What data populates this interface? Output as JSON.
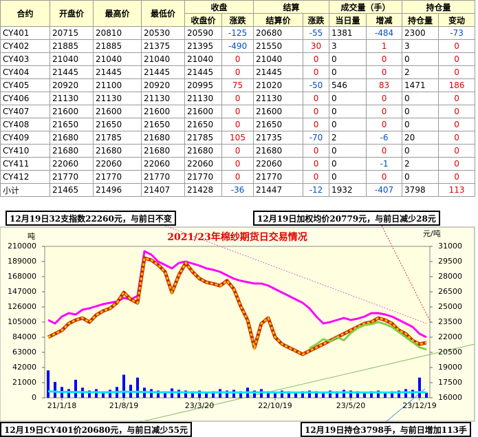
{
  "table": {
    "top": [
      "合约",
      "开盘价",
      "最高价",
      "最低价",
      "收盘",
      "结算",
      "成交量（手）",
      "持仓量"
    ],
    "sub": [
      "收盘价",
      "涨跌",
      "结算价",
      "涨跌",
      "当日量",
      "增减",
      "持仓量",
      "变动"
    ],
    "rows": [
      [
        "CY401",
        20715,
        20810,
        20530,
        20590,
        -125,
        20680,
        -55,
        1381,
        -484,
        2300,
        -73
      ],
      [
        "CY402",
        21885,
        21885,
        21375,
        21395,
        -490,
        21550,
        30,
        3,
        1,
        3,
        0
      ],
      [
        "CY403",
        21040,
        21040,
        21040,
        21040,
        0,
        21040,
        0,
        0,
        0,
        0,
        0
      ],
      [
        "CY404",
        21445,
        21445,
        21445,
        21445,
        0,
        21445,
        0,
        0,
        0,
        2,
        0
      ],
      [
        "CY405",
        20920,
        21100,
        20920,
        20995,
        75,
        21020,
        -50,
        546,
        83,
        1471,
        186
      ],
      [
        "CY406",
        21130,
        21130,
        21130,
        21130,
        0,
        21130,
        0,
        0,
        0,
        0,
        0
      ],
      [
        "CY407",
        21600,
        21600,
        21600,
        21600,
        0,
        21600,
        0,
        0,
        0,
        0,
        0
      ],
      [
        "CY408",
        21650,
        21650,
        21650,
        21650,
        0,
        21650,
        0,
        0,
        0,
        0,
        0
      ],
      [
        "CY409",
        21680,
        21785,
        21680,
        21785,
        105,
        21735,
        -70,
        2,
        -6,
        20,
        0
      ],
      [
        "CY410",
        21680,
        21680,
        21680,
        21680,
        0,
        21680,
        0,
        0,
        0,
        0,
        0
      ],
      [
        "CY411",
        22060,
        22060,
        22060,
        22060,
        0,
        22060,
        0,
        0,
        -1,
        2,
        0
      ],
      [
        "CY412",
        21770,
        21770,
        21770,
        21770,
        0,
        21770,
        0,
        0,
        0,
        0,
        0
      ],
      [
        "小计",
        21465,
        21496,
        21407,
        21428,
        -36,
        21447,
        -12,
        1932,
        -407,
        3798,
        113
      ]
    ]
  },
  "annotations": [
    "12月19日32支指数22260元，与前日不变",
    "12月19日加权均价20779元，与前日减少28元",
    "12月19日CY401价20680元，与前日减少55元",
    "12月19日持仓3798手，与前日增加113手"
  ],
  "chart_data": {
    "type": "combo",
    "title": "2021/23年棉纱期货日交易情况",
    "y_label": "吨",
    "y2_label": "元/吨",
    "categories": [
      null,
      null,
      "21/1/18",
      null,
      null,
      null,
      null,
      null,
      null,
      null,
      null,
      "21/8/19",
      null,
      null,
      null,
      null,
      null,
      null,
      null,
      null,
      null,
      null,
      "23/3/20",
      null,
      null,
      null,
      null,
      null,
      null,
      null,
      null,
      null,
      null,
      "22/10/19",
      null,
      null,
      null,
      null,
      null,
      null,
      null,
      null,
      null,
      null,
      "23/5/20",
      null,
      null,
      null,
      null,
      null,
      null,
      null,
      null,
      null,
      "23/12/19",
      null
    ],
    "ylim": [
      0,
      210000
    ],
    "yticks": [
      0,
      21000,
      42000,
      63000,
      84000,
      105000,
      126000,
      147000,
      168000,
      189000,
      210000
    ],
    "y2lim": [
      16000,
      31000
    ],
    "y2ticks": [
      16000,
      17500,
      19000,
      20500,
      22000,
      23500,
      25000,
      26500,
      28000,
      29500,
      31000
    ],
    "grid": false,
    "series": [
      {
        "type": "bar",
        "color": "#0000ff",
        "values": [
          38000,
          22000,
          15000,
          12000,
          25000,
          14000,
          10000,
          12000,
          9000,
          11000,
          15000,
          32000,
          18000,
          28000,
          14000,
          12000,
          10000,
          9000,
          13000,
          11000,
          10000,
          9000,
          10000,
          8000,
          9000,
          12000,
          10000,
          11000,
          9000,
          14000,
          10000,
          12000,
          9000,
          8000,
          10000,
          9000,
          8000,
          9000,
          10000,
          9000,
          8000,
          10000,
          9000,
          11000,
          10000,
          9000,
          8000,
          9000,
          10000,
          8000,
          9000,
          10000,
          12000,
          11000,
          28000,
          7000
        ]
      },
      {
        "type": "line",
        "color": "#00e5ff",
        "values": [
          9000,
          8500,
          8000,
          8200,
          7800,
          8000,
          7600,
          7800,
          7500,
          7700,
          8000,
          8500,
          8200,
          8400,
          8000,
          7800,
          7600,
          7500,
          7700,
          7600,
          7500,
          7400,
          7500,
          7300,
          7400,
          7600,
          7500,
          7400,
          7300,
          7500,
          7400,
          7600,
          7500,
          7300,
          7400,
          7500,
          7300,
          7400,
          7500,
          7400,
          7300,
          7500,
          7400,
          7600,
          7500,
          7400,
          7300,
          7400,
          7500,
          7300,
          7400,
          7500,
          7600,
          7500,
          8000,
          7200
        ]
      },
      {
        "type": "line",
        "color": "#ff00ff",
        "values": [
          108000,
          103000,
          112600,
          117400,
          115500,
          122200,
          124100,
          127000,
          129900,
          131700,
          133600,
          138400,
          136500,
          141300,
          203300,
          198500,
          189000,
          184200,
          179500,
          187000,
          189000,
          186100,
          183300,
          179500,
          177500,
          174700,
          169900,
          165100,
          162300,
          160400,
          158500,
          158500,
          155600,
          150800,
          146000,
          141300,
          136500,
          131700,
          124100,
          112600,
          103100,
          105000,
          107900,
          110700,
          107900,
          109800,
          112600,
          117400,
          117400,
          115500,
          112600,
          107900,
          103100,
          98300,
          88800,
          84000
        ]
      },
      {
        "type": "line",
        "axis": "y2",
        "color": "#e8c000",
        "edge_color": "#cc2200",
        "values": [
          22000,
          22340,
          22680,
          23360,
          23700,
          23900,
          23500,
          24200,
          24600,
          24860,
          25400,
          26430,
          25750,
          25400,
          29840,
          29640,
          29160,
          28480,
          26430,
          28140,
          29360,
          28480,
          27800,
          27450,
          27300,
          27100,
          27600,
          26770,
          25070,
          23700,
          20980,
          23360,
          23900,
          22000,
          21320,
          20980,
          20640,
          20300,
          20640,
          20980,
          21320,
          21660,
          22000,
          22340,
          22680,
          23020,
          23360,
          23500,
          23900,
          23700,
          23360,
          22680,
          22340,
          21660,
          21320,
          21460
        ]
      },
      {
        "type": "line",
        "axis": "y2",
        "color": "#88cc44",
        "values": [
          null,
          null,
          null,
          null,
          null,
          null,
          null,
          null,
          null,
          null,
          null,
          null,
          null,
          null,
          null,
          null,
          null,
          null,
          null,
          null,
          null,
          null,
          null,
          null,
          null,
          null,
          null,
          null,
          null,
          null,
          null,
          null,
          null,
          null,
          null,
          null,
          null,
          null,
          20900,
          21300,
          21800,
          21600,
          22000,
          21700,
          22400,
          22900,
          23200,
          23300,
          23500,
          23300,
          23000,
          22500,
          22000,
          21500,
          21000,
          20780
        ]
      }
    ]
  }
}
